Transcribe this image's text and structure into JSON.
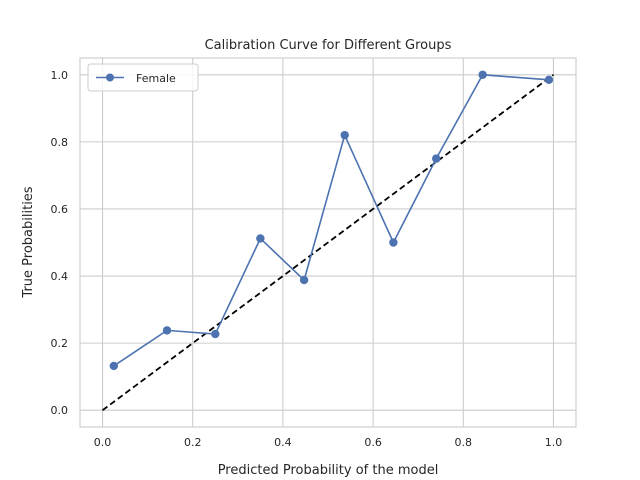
{
  "chart_data": {
    "type": "line",
    "title": "Calibration Curve for Different Groups",
    "xlabel": "Predicted Probability of the model",
    "ylabel": "True Probabilities",
    "xlim": [
      -0.05,
      1.05
    ],
    "ylim": [
      -0.05,
      1.05
    ],
    "xticks": [
      0.0,
      0.2,
      0.4,
      0.6,
      0.8,
      1.0
    ],
    "yticks": [
      0.0,
      0.2,
      0.4,
      0.6,
      0.8,
      1.0
    ],
    "xtick_labels": [
      "0.0",
      "0.2",
      "0.4",
      "0.6",
      "0.8",
      "1.0"
    ],
    "ytick_labels": [
      "0.0",
      "0.2",
      "0.4",
      "0.6",
      "0.8",
      "1.0"
    ],
    "grid": true,
    "legend_position": "top-left",
    "series": [
      {
        "name": "Female",
        "color": "#4c72b0",
        "marker": "circle",
        "x": [
          0.025,
          0.143,
          0.25,
          0.35,
          0.447,
          0.537,
          0.645,
          0.74,
          0.843,
          0.99
        ],
        "y": [
          0.132,
          0.238,
          0.227,
          0.512,
          0.388,
          0.82,
          0.5,
          0.75,
          1.0,
          0.985
        ]
      }
    ],
    "reference_line": {
      "x": [
        0.0,
        1.0
      ],
      "y": [
        0.0,
        1.0
      ],
      "color": "#000000",
      "style": "dashed"
    }
  }
}
